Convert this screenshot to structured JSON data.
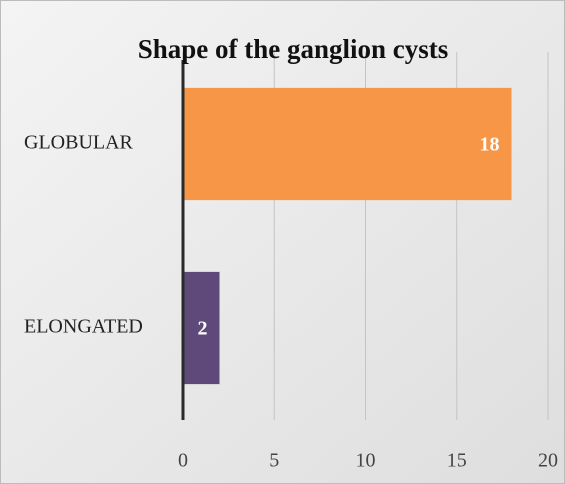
{
  "chart_data": {
    "type": "barh",
    "title": "Shape of the ganglion cysts",
    "categories": [
      "GLOBULAR",
      "ELONGATED"
    ],
    "values": [
      18,
      2
    ],
    "colors": [
      "#f79646",
      "#5f497a"
    ],
    "xlim": [
      0,
      20
    ],
    "xticks": [
      0,
      5,
      10,
      15,
      20
    ],
    "grid": true
  }
}
